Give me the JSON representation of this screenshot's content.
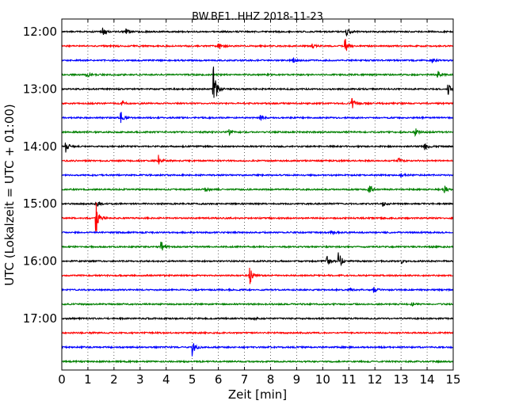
{
  "chart_data": {
    "type": "line",
    "title": "BW.BE1..HHZ 2018-11-23",
    "xlabel": "Zeit  [min]",
    "ylabel": "UTC (Lokalzeit = UTC + 01:00)",
    "xlim": [
      0,
      15
    ],
    "x_ticks": [
      "0",
      "1",
      "2",
      "3",
      "4",
      "5",
      "6",
      "7",
      "8",
      "9",
      "10",
      "11",
      "12",
      "13",
      "14",
      "15"
    ],
    "y_tick_labels": [
      "12:00",
      "13:00",
      "14:00",
      "15:00",
      "16:00",
      "17:00"
    ],
    "y_tick_trace_index": [
      0,
      4,
      8,
      12,
      16,
      20
    ],
    "trace_colors": [
      "#000000",
      "#ff0000",
      "#0000ff",
      "#008000"
    ],
    "grid": "vertical dotted",
    "traces": [
      {
        "start": "12:00",
        "events": [
          {
            "t": 1.55,
            "amp": 6
          },
          {
            "t": 2.45,
            "amp": 4
          },
          {
            "t": 10.9,
            "amp": 8
          }
        ]
      },
      {
        "start": "12:15",
        "events": [
          {
            "t": 6.0,
            "amp": 6
          },
          {
            "t": 9.6,
            "amp": 4
          },
          {
            "t": 10.85,
            "amp": 14
          }
        ]
      },
      {
        "start": "12:30",
        "events": [
          {
            "t": 8.85,
            "amp": 4
          },
          {
            "t": 14.2,
            "amp": 3
          }
        ]
      },
      {
        "start": "12:45",
        "events": [
          {
            "t": 0.95,
            "amp": 6
          },
          {
            "t": 14.4,
            "amp": 5
          }
        ]
      },
      {
        "start": "13:00",
        "events": [
          {
            "t": 5.8,
            "amp": 38
          },
          {
            "t": 14.8,
            "amp": 13
          }
        ]
      },
      {
        "start": "13:15",
        "events": [
          {
            "t": 2.3,
            "amp": 4
          },
          {
            "t": 11.1,
            "amp": 10
          }
        ]
      },
      {
        "start": "13:30",
        "events": [
          {
            "t": 2.25,
            "amp": 9
          },
          {
            "t": 7.6,
            "amp": 3
          }
        ]
      },
      {
        "start": "13:45",
        "events": [
          {
            "t": 6.35,
            "amp": 6
          },
          {
            "t": 13.55,
            "amp": 5
          }
        ]
      },
      {
        "start": "14:00",
        "events": [
          {
            "t": 0.15,
            "amp": 8
          },
          {
            "t": 13.9,
            "amp": 6
          }
        ]
      },
      {
        "start": "14:15",
        "events": [
          {
            "t": 3.7,
            "amp": 11
          },
          {
            "t": 12.9,
            "amp": 3
          }
        ]
      },
      {
        "start": "14:30",
        "events": [
          {
            "t": 13.0,
            "amp": 3
          }
        ]
      },
      {
        "start": "14:45",
        "events": [
          {
            "t": 5.5,
            "amp": 5
          },
          {
            "t": 11.75,
            "amp": 9
          },
          {
            "t": 14.65,
            "amp": 6
          }
        ]
      },
      {
        "start": "15:00",
        "events": [
          {
            "t": 1.3,
            "amp": 5
          },
          {
            "t": 12.3,
            "amp": 3
          }
        ]
      },
      {
        "start": "15:15",
        "events": [
          {
            "t": 1.3,
            "amp": 25
          }
        ]
      },
      {
        "start": "15:30",
        "events": [
          {
            "t": 10.3,
            "amp": 4
          }
        ]
      },
      {
        "start": "15:45",
        "events": [
          {
            "t": 3.8,
            "amp": 10
          }
        ]
      },
      {
        "start": "16:00",
        "events": [
          {
            "t": 10.15,
            "amp": 8
          },
          {
            "t": 10.6,
            "amp": 16
          },
          {
            "t": 13.0,
            "amp": 3
          }
        ]
      },
      {
        "start": "16:15",
        "events": [
          {
            "t": 7.2,
            "amp": 12
          }
        ]
      },
      {
        "start": "16:30",
        "events": [
          {
            "t": 11.0,
            "amp": 4
          },
          {
            "t": 11.95,
            "amp": 4
          }
        ]
      },
      {
        "start": "16:45",
        "events": [
          {
            "t": 13.4,
            "amp": 3
          }
        ]
      },
      {
        "start": "17:00",
        "events": [
          {
            "t": 7.35,
            "amp": 2
          }
        ]
      },
      {
        "start": "17:15",
        "events": []
      },
      {
        "start": "17:30",
        "events": [
          {
            "t": 5.0,
            "amp": 12
          }
        ]
      },
      {
        "start": "17:45",
        "events": []
      }
    ]
  }
}
